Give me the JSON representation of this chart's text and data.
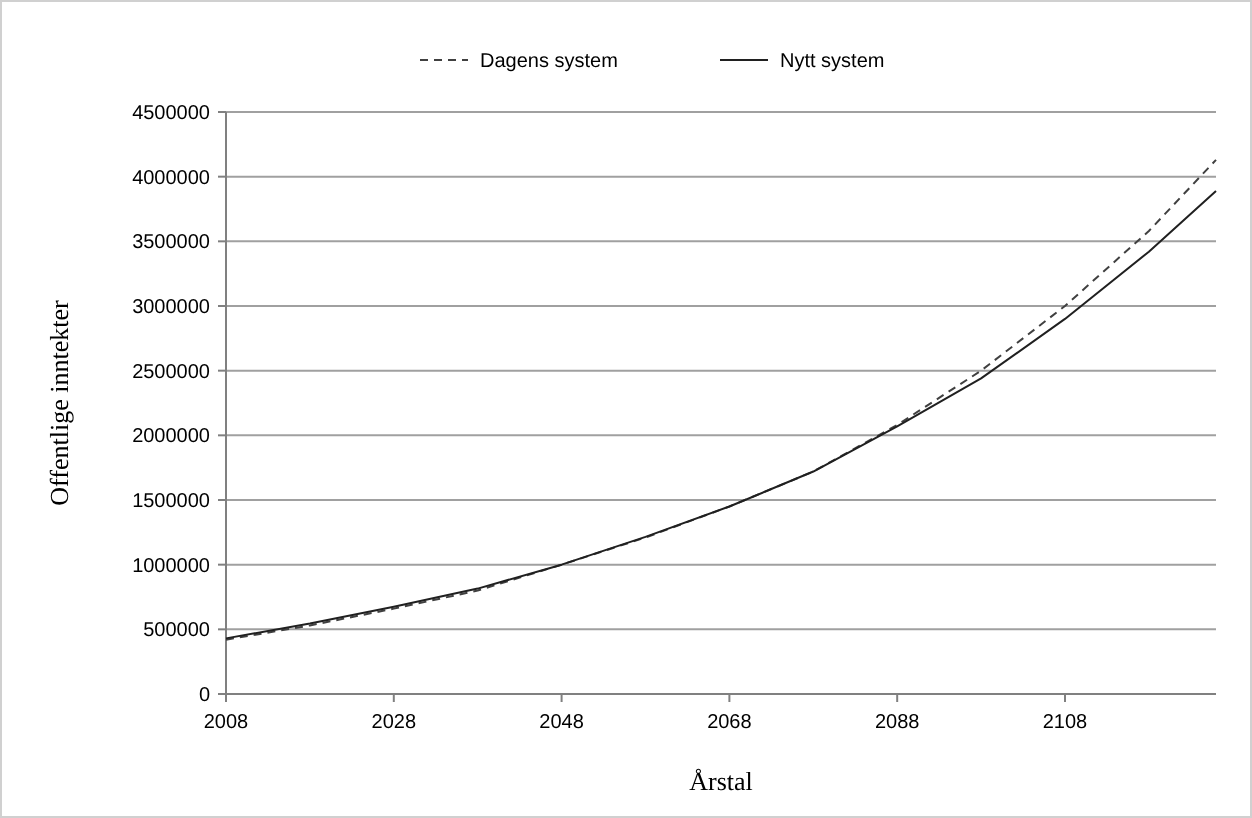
{
  "chart_data": {
    "type": "line",
    "xlabel": "Årstal",
    "ylabel": "Offentlige inntekter",
    "x": [
      2008,
      2018,
      2028,
      2038,
      2048,
      2058,
      2068,
      2078,
      2088,
      2098,
      2108,
      2118,
      2126
    ],
    "series": [
      {
        "name": "Dagens system",
        "color": "#404040",
        "line_style": "dashed",
        "values": [
          420000,
          530000,
          660000,
          800000,
          1000000,
          1210000,
          1450000,
          1720000,
          2080000,
          2500000,
          3000000,
          3580000,
          4130000
        ]
      },
      {
        "name": "Nytt system",
        "color": "#202020",
        "line_style": "solid",
        "values": [
          430000,
          545000,
          675000,
          815000,
          1000000,
          1215000,
          1450000,
          1720000,
          2070000,
          2440000,
          2900000,
          3420000,
          3890000
        ]
      }
    ],
    "xlim": [
      2008,
      2126
    ],
    "xticks": [
      2008,
      2028,
      2048,
      2068,
      2088,
      2108
    ],
    "ylim": [
      0,
      4500000
    ],
    "yticks": [
      0,
      500000,
      1000000,
      1500000,
      2000000,
      2500000,
      3000000,
      3500000,
      4000000,
      4500000
    ],
    "grid": "y",
    "legend": "top",
    "marker": "none"
  }
}
